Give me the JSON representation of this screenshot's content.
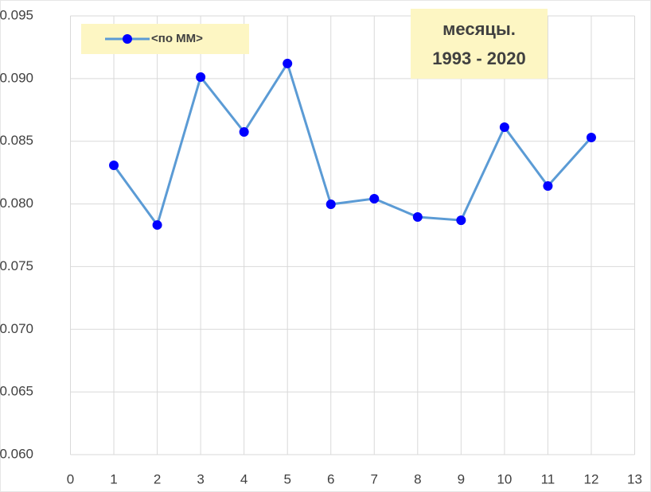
{
  "chart_data": {
    "type": "line",
    "annotation": [
      "месяцы.",
      "1993 - 2020"
    ],
    "x": [
      1,
      2,
      3,
      4,
      5,
      6,
      7,
      8,
      9,
      10,
      11,
      12
    ],
    "series": [
      {
        "name": "<по ММ>",
        "color": "#5b9bd5",
        "marker_color": "#0000ff",
        "values": [
          0.08308,
          0.07832,
          0.09012,
          0.08574,
          0.0912,
          0.07997,
          0.08042,
          0.07896,
          0.0787,
          0.08612,
          0.08143,
          0.0853
        ]
      }
    ],
    "xlim": [
      0,
      13
    ],
    "xticks": [
      0,
      1,
      2,
      3,
      4,
      5,
      6,
      7,
      8,
      9,
      10,
      11,
      12,
      13
    ],
    "ylim": [
      0.06,
      0.095
    ],
    "yticks": [
      {
        "value": 0.06,
        "label": "0.060"
      },
      0.065,
      {
        "value": 0.07,
        "label": "0.070"
      },
      0.075,
      {
        "value": 0.08,
        "label": "0.080"
      },
      0.085,
      {
        "value": 0.09,
        "label": "0.090"
      },
      0.095
    ],
    "grid": true,
    "legend": "top-left"
  }
}
